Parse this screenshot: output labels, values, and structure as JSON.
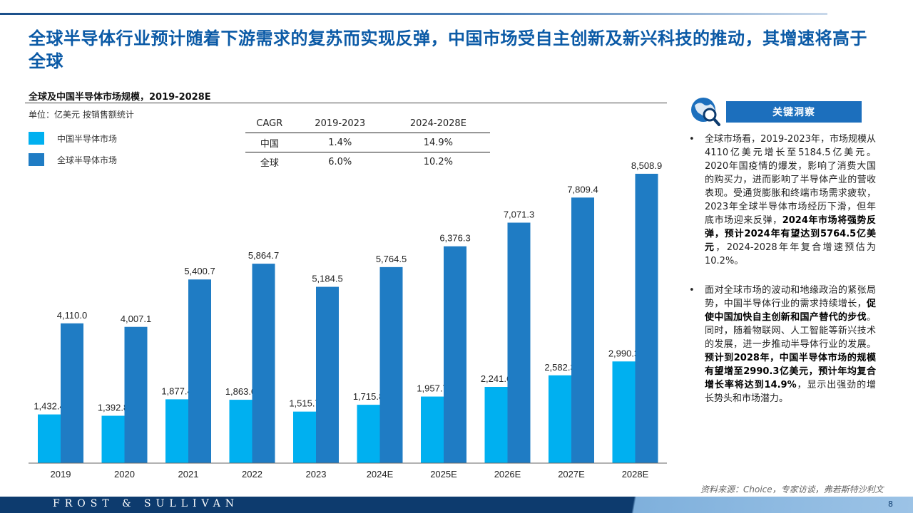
{
  "title": "全球半导体行业预计随着下游需求的复苏而实现反弹，中国市场受自主创新及新兴科技的推动，其增速将高于全球",
  "chart_title": "全球及中国半导体市场规模，2019-2028E",
  "unit": "单位：亿美元 按销售额统计",
  "legend": [
    {
      "label": "中国半导体市场",
      "color": "#00b0f0"
    },
    {
      "label": "全球半导体市场",
      "color": "#1f7cc4"
    }
  ],
  "cagr_table": {
    "headers": [
      "CAGR",
      "2019-2023",
      "2024-2028E"
    ],
    "rows": [
      [
        "中国",
        "1.4%",
        "14.9%"
      ],
      [
        "全球",
        "6.0%",
        "10.2%"
      ]
    ]
  },
  "chart_data": {
    "type": "bar",
    "categories": [
      "2019",
      "2020",
      "2021",
      "2022",
      "2023",
      "2024E",
      "2025E",
      "2026E",
      "2027E",
      "2028E"
    ],
    "series": [
      {
        "name": "中国半导体市场",
        "values": [
          1432.4,
          1392.8,
          1877.4,
          1863.0,
          1515.7,
          1715.8,
          1957.7,
          2241.6,
          2582.3,
          2990.3
        ],
        "labels": [
          "1,432.4",
          "1,392.8",
          "1,877.4",
          "1,863.0",
          "1,515.7",
          "1,715.8",
          "1,957.7",
          "2,241.6",
          "2,582.3",
          "2,990.3"
        ],
        "color": "#00b0f0"
      },
      {
        "name": "全球半导体市场",
        "values": [
          4110.0,
          4007.1,
          5400.7,
          5864.7,
          5184.5,
          5764.5,
          6376.3,
          7071.3,
          7809.4,
          8508.9
        ],
        "labels": [
          "4,110.0",
          "4,007.1",
          "5,400.7",
          "5,864.7",
          "5,184.5",
          "5,764.5",
          "6,376.3",
          "7,071.3",
          "7,809.4",
          "8,508.9"
        ],
        "color": "#1f7cc4"
      }
    ],
    "ylim": [
      0,
      9000
    ],
    "grid": false
  },
  "insight": {
    "title": "关键洞察",
    "icon": "globe-magnifier-icon",
    "bullets": [
      [
        {
          "t": "全球市场看，2019-2023年，市场规模从4110亿美元增长至5184.5亿美元。2020年国疫情的爆发，影响了消费大国的购买力，进而影响了半导体产业的营收表现。受通货膨胀和终端市场需求疲软，2023年全球半导体市场经历下滑，但年底市场迎来反弹，",
          "b": false
        },
        {
          "t": "2024年市场将强势反弹，预计2024年有望达到5764.5亿美元",
          "b": true
        },
        {
          "t": "，2024-2028年年复合增速预估为10.2%。",
          "b": false
        }
      ],
      [
        {
          "t": "面对全球市场的波动和地缘政治的紧张局势，中国半导体行业的需求持续增长，",
          "b": false
        },
        {
          "t": "促使中国加快自主创新和国产替代的步伐",
          "b": true
        },
        {
          "t": "。同时，随着物联网、人工智能等新兴技术的发展，进一步推动半导体行业的发展。",
          "b": false
        },
        {
          "t": "预计到2028年，中国半导体市场的规模有望增至2990.3亿美元，预计年均复合增长率将达到14.9%",
          "b": true
        },
        {
          "t": "，显示出强劲的增长势头和市场潜力。",
          "b": false
        }
      ]
    ]
  },
  "source": "资料来源：Choice，专家访谈，弗若斯特沙利文",
  "footer": {
    "brand": "FROST & SULLIVAN",
    "page": "8"
  }
}
